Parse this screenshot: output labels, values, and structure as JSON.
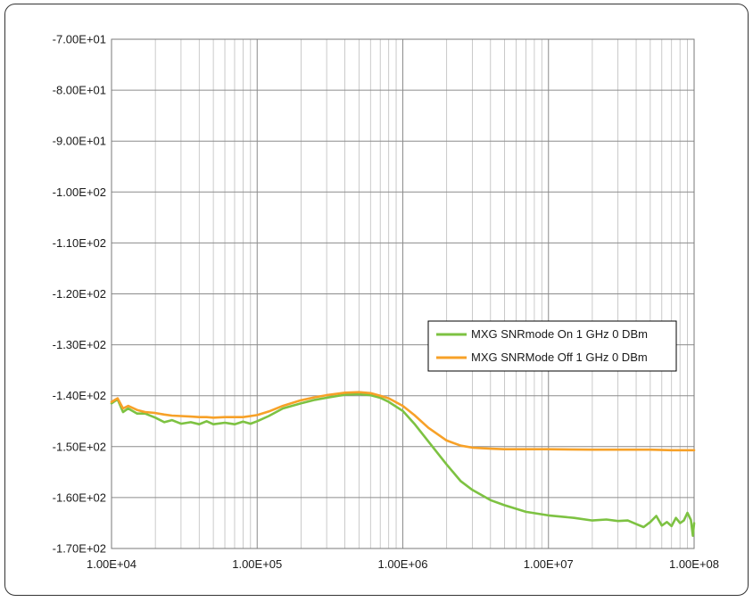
{
  "chart_data": {
    "type": "line",
    "title": "",
    "xlabel": "",
    "ylabel": "",
    "x_scale": "log",
    "xlim": [
      10000,
      100000000
    ],
    "ylim": [
      -170,
      -70
    ],
    "grid": true,
    "legend_position": "right-middle",
    "x_tick_labels": [
      "1.00E+04",
      "1.00E+05",
      "1.00E+06",
      "1.00E+07",
      "1.00E+08"
    ],
    "y_tick_labels": [
      "-7.00E+01",
      "-8.00E+01",
      "-9.00E+01",
      "-1.00E+02",
      "-1.10E+02",
      "-1.20E+02",
      "-1.30E+02",
      "-1.40E+02",
      "-1.50E+02",
      "-1.60E+02",
      "-1.70E+02"
    ],
    "series": [
      {
        "name": "MXG SNRmode On 1 GHz 0 DBm",
        "color": "#7dc242",
        "x": [
          10000,
          11000,
          12000,
          13000,
          15000,
          17000,
          20000,
          23000,
          26000,
          30000,
          35000,
          40000,
          45000,
          50000,
          60000,
          70000,
          80000,
          90000,
          100000,
          120000,
          150000,
          200000,
          250000,
          300000,
          400000,
          500000,
          600000,
          700000,
          800000,
          1000000,
          1200000,
          1500000,
          2000000,
          2500000,
          3000000,
          4000000,
          5000000,
          7000000,
          10000000,
          15000000,
          20000000,
          25000000,
          30000000,
          35000000,
          40000000,
          45000000,
          50000000,
          55000000,
          60000000,
          65000000,
          70000000,
          75000000,
          80000000,
          85000000,
          90000000,
          95000000,
          98000000,
          100000000
        ],
        "y": [
          -141.5,
          -140.7,
          -143.2,
          -142.5,
          -143.5,
          -143.5,
          -144.3,
          -145.2,
          -144.8,
          -145.5,
          -145.2,
          -145.6,
          -145.0,
          -145.6,
          -145.3,
          -145.6,
          -145.1,
          -145.5,
          -145.0,
          -144.0,
          -142.5,
          -141.5,
          -140.8,
          -140.4,
          -139.8,
          -139.7,
          -139.9,
          -140.4,
          -141.2,
          -143.0,
          -145.5,
          -149.0,
          -153.5,
          -156.8,
          -158.5,
          -160.5,
          -161.5,
          -162.8,
          -163.5,
          -164.0,
          -164.5,
          -164.3,
          -164.6,
          -164.5,
          -165.2,
          -165.8,
          -164.8,
          -163.6,
          -165.5,
          -164.8,
          -165.6,
          -164.0,
          -165.0,
          -164.5,
          -163.0,
          -164.4,
          -167.5,
          -165.0
        ]
      },
      {
        "name": "MXG SNRMode Off 1 GHz 0 DBm",
        "color": "#f7a128",
        "x": [
          10000,
          11000,
          12000,
          13000,
          15000,
          17000,
          20000,
          23000,
          26000,
          30000,
          35000,
          40000,
          45000,
          50000,
          60000,
          70000,
          80000,
          90000,
          100000,
          120000,
          150000,
          200000,
          250000,
          300000,
          400000,
          500000,
          600000,
          700000,
          800000,
          1000000,
          1200000,
          1500000,
          2000000,
          2500000,
          3000000,
          4000000,
          5000000,
          7000000,
          10000000,
          20000000,
          30000000,
          50000000,
          70000000,
          100000000
        ],
        "y": [
          -141.2,
          -140.5,
          -142.5,
          -142.0,
          -142.8,
          -143.2,
          -143.4,
          -143.7,
          -143.9,
          -144.0,
          -144.1,
          -144.2,
          -144.2,
          -144.3,
          -144.2,
          -144.2,
          -144.2,
          -144.0,
          -143.8,
          -143.1,
          -142.0,
          -140.9,
          -140.3,
          -139.9,
          -139.4,
          -139.3,
          -139.5,
          -140.0,
          -140.5,
          -142.0,
          -143.8,
          -146.3,
          -148.8,
          -149.8,
          -150.2,
          -150.4,
          -150.5,
          -150.5,
          -150.5,
          -150.6,
          -150.6,
          -150.6,
          -150.7,
          -150.7
        ]
      }
    ]
  }
}
